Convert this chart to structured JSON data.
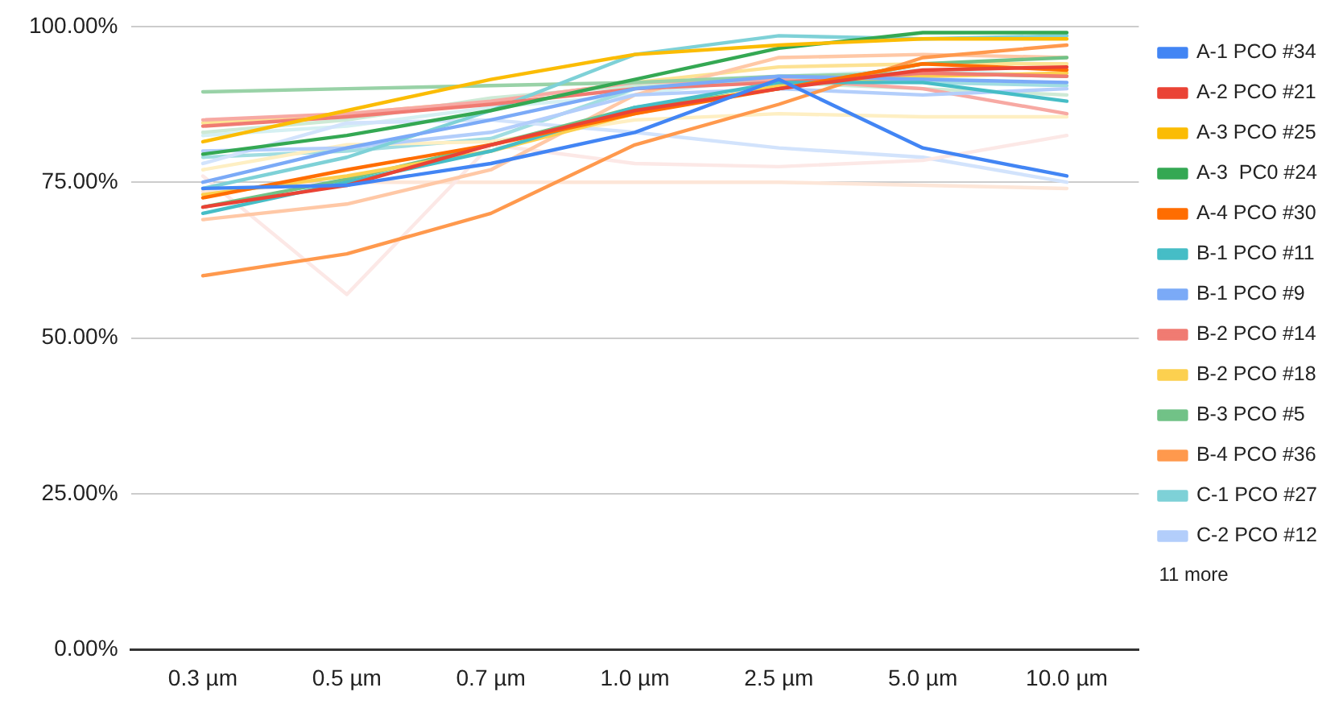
{
  "chart_data": {
    "type": "line",
    "categories": [
      "0.3 µm",
      "0.5 µm",
      "0.7 µm",
      "1.0 µm",
      "2.5 µm",
      "5.0 µm",
      "10.0 µm"
    ],
    "ylim": [
      0,
      100
    ],
    "yticks": [
      {
        "value": 0,
        "label": "0.00%"
      },
      {
        "value": 25,
        "label": "25.00%"
      },
      {
        "value": 50,
        "label": "50.00%"
      },
      {
        "value": 75,
        "label": "75.00%"
      },
      {
        "value": 100,
        "label": "100.00%"
      }
    ],
    "grid": "y",
    "legend": "right",
    "marker": "none",
    "line_style": "solid",
    "annotations": [
      "11 more"
    ],
    "series": [
      {
        "name": "A-1 PCO #34",
        "color": "#4285f4",
        "values": [
          74,
          74.5,
          78,
          83,
          91.5,
          80.5,
          76
        ]
      },
      {
        "name": "A-2 PCO #21",
        "color": "#ea4335",
        "values": [
          71,
          74.5,
          81,
          86.5,
          90,
          93,
          93.5
        ]
      },
      {
        "name": "A-3 PCO #25",
        "color": "#fbbc04",
        "values": [
          81.5,
          86.5,
          91.5,
          95.5,
          97,
          98,
          98
        ]
      },
      {
        "name": "A-3  PC0 #24",
        "color": "#34a853",
        "values": [
          79.5,
          82.5,
          86.5,
          91.5,
          96.5,
          99,
          99
        ]
      },
      {
        "name": "A-4 PCO #30",
        "color": "#ff6d01",
        "values": [
          72.5,
          77,
          81,
          86,
          90,
          94,
          93
        ]
      },
      {
        "name": "B-1 PCO #11",
        "color": "#46bdc6",
        "values": [
          70,
          75,
          80,
          87,
          91,
          91,
          88
        ]
      },
      {
        "name": "B-1 PCO #9",
        "color": "#7baaf7",
        "values": [
          75,
          80.5,
          85,
          90,
          92,
          91.5,
          91
        ]
      },
      {
        "name": "B-2 PCO #14",
        "color": "#f07b72",
        "values": [
          84,
          85.5,
          87.5,
          90,
          91,
          92.5,
          92
        ]
      },
      {
        "name": "B-2 PCO #18",
        "color": "#fcd04f",
        "values": [
          73,
          76,
          80,
          86,
          90.5,
          92,
          92.5
        ]
      },
      {
        "name": "B-3 PCO #5",
        "color": "#71c287",
        "values": [
          71,
          75.5,
          81,
          87,
          90,
          94,
          95
        ]
      },
      {
        "name": "B-4 PCO #36",
        "color": "#ff994d",
        "values": [
          60,
          63.5,
          70,
          81,
          87.5,
          95,
          97
        ]
      },
      {
        "name": "C-1 PCO #27",
        "color": "#7ed1d7",
        "values": [
          74,
          79,
          86.5,
          95.5,
          98.5,
          98,
          98.5
        ]
      },
      {
        "name": "C-2 PCO #12",
        "color": "#b3cefb",
        "values": [
          80,
          80.5,
          83,
          89,
          90,
          89,
          90
        ]
      },
      {
        "color": "#99d2a7",
        "values": [
          89.5,
          90,
          90.5,
          91,
          92,
          92.5,
          92
        ]
      },
      {
        "color": "#f7a9a3",
        "values": [
          85,
          86,
          88,
          91,
          91.5,
          90,
          86
        ]
      },
      {
        "color": "#ffc8a6",
        "values": [
          69,
          71.5,
          77,
          89,
          95,
          95.5,
          95
        ]
      },
      {
        "color": "#fce8e6",
        "values": [
          76,
          57,
          81,
          78,
          77.5,
          78.5,
          82.5
        ]
      },
      {
        "color": "#fde6d8",
        "values": [
          73.5,
          75,
          75,
          75,
          75,
          74.5,
          74
        ]
      },
      {
        "color": "#d2e3fc",
        "values": [
          78,
          84.5,
          85,
          83,
          80.5,
          79,
          75
        ]
      },
      {
        "color": "#feefc3",
        "values": [
          77,
          81,
          81.5,
          85,
          86,
          85.5,
          85.5
        ]
      },
      {
        "color": "#a1dde1",
        "values": [
          79,
          80,
          82,
          90,
          91.5,
          91,
          90.5
        ]
      },
      {
        "color": "#ceead6",
        "values": [
          83,
          85,
          88.5,
          90.5,
          91,
          90,
          89
        ]
      },
      {
        "color": "#d5f0f2",
        "values": [
          82.5,
          84,
          87,
          89,
          92,
          93,
          92
        ]
      },
      {
        "color": "#fde293",
        "values": [
          84.5,
          86,
          88,
          91,
          93.5,
          94,
          94
        ]
      }
    ]
  }
}
